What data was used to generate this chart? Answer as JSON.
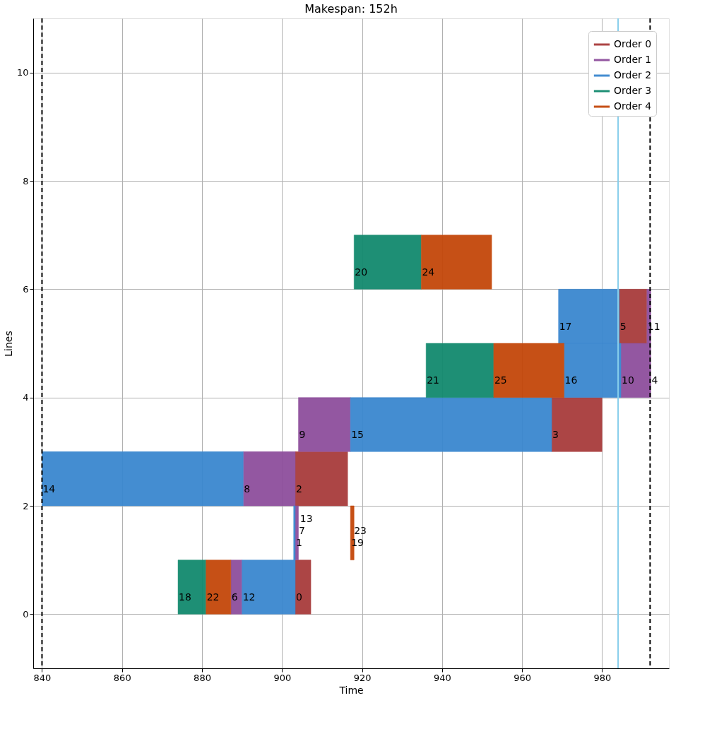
{
  "chart_data": {
    "type": "bar",
    "orientation": "horizontal",
    "title": "Makespan: 152h",
    "xlabel": "Time",
    "ylabel": "Lines",
    "series": [
      {
        "name": "Order 0",
        "color": "#a83c3c",
        "x": [
          0.5,
          2.5,
          3.5,
          5.5
        ],
        "base": [
          903.3,
          903.3,
          967.4,
          984.3
        ],
        "values": [
          3.9,
          13.1,
          12.6,
          6.9
        ]
      },
      {
        "name": "Order 1",
        "color": "#8e4f9c",
        "x": [
          0.5,
          1.5,
          2.5,
          3.5,
          4.5,
          5.5
        ],
        "base": [
          887.2,
          903.3,
          890.3,
          904.1,
          984.7,
          991.2
        ],
        "values": [
          2.8,
          0.8,
          13.0,
          13.0,
          7.5,
          1.0
        ]
      },
      {
        "name": "Order 2",
        "color": "#3a87cf",
        "x": [
          0.5,
          1.5,
          2.5,
          3.5,
          4.5,
          5.5
        ],
        "base": [
          890.0,
          902.9,
          840.0,
          917.1,
          970.5,
          969.1
        ],
        "values": [
          13.3,
          0.4,
          50.3,
          50.3,
          14.2,
          15.2
        ]
      },
      {
        "name": "Order 3",
        "color": "#138a6e",
        "x": [
          0.5,
          4.5,
          6.5
        ],
        "base": [
          874.0,
          936.0,
          918.0
        ],
        "values": [
          7.0,
          16.9,
          16.8
        ]
      },
      {
        "name": "Order 4",
        "color": "#c4470a",
        "x": [
          0.5,
          1.5,
          4.5,
          6.5
        ],
        "base": [
          881.0,
          917.1,
          952.9,
          934.8
        ],
        "values": [
          6.2,
          0.9,
          17.6,
          17.6
        ]
      }
    ],
    "annotations": [
      {
        "text": "0",
        "x": 903.3,
        "y": 0.5
      },
      {
        "text": "1",
        "x": 903.3,
        "y": 1.5
      },
      {
        "text": "2",
        "x": 903.3,
        "y": 2.5
      },
      {
        "text": "3",
        "x": 967.4,
        "y": 3.5
      },
      {
        "text": "4",
        "x": 992.2,
        "y": 4.5
      },
      {
        "text": "5",
        "x": 984.3,
        "y": 5.5
      },
      {
        "text": "6",
        "x": 887.2,
        "y": 0.5
      },
      {
        "text": "7",
        "x": 903.3,
        "y": 1.5
      },
      {
        "text": "8",
        "x": 890.3,
        "y": 2.5
      },
      {
        "text": "9",
        "x": 904.1,
        "y": 3.5
      },
      {
        "text": "10",
        "x": 984.7,
        "y": 4.5
      },
      {
        "text": "11",
        "x": 991.2,
        "y": 5.5
      },
      {
        "text": "12",
        "x": 890.0,
        "y": 0.5
      },
      {
        "text": "13",
        "x": 902.9,
        "y": 1.5
      },
      {
        "text": "14",
        "x": 840.0,
        "y": 2.5
      },
      {
        "text": "15",
        "x": 917.1,
        "y": 3.5
      },
      {
        "text": "16",
        "x": 970.5,
        "y": 4.5
      },
      {
        "text": "17",
        "x": 969.1,
        "y": 5.5
      },
      {
        "text": "18",
        "x": 874.0,
        "y": 0.5
      },
      {
        "text": "19",
        "x": 917.1,
        "y": 1.5
      },
      {
        "text": "20",
        "x": 918.0,
        "y": 6.5
      },
      {
        "text": "21",
        "x": 936.0,
        "y": 4.5
      },
      {
        "text": "22",
        "x": 881.0,
        "y": 0.5
      },
      {
        "text": "23",
        "x": 917.1,
        "y": 1.5
      },
      {
        "text": "24",
        "x": 934.8,
        "y": 6.5
      },
      {
        "text": "25",
        "x": 952.9,
        "y": 4.5
      }
    ],
    "xlim": [
      837.8,
      996.7
    ],
    "xticks": [
      840,
      860,
      880,
      900,
      920,
      940,
      960,
      980
    ],
    "ylim": [
      -1,
      11
    ],
    "yticks": [
      0,
      2,
      4,
      6,
      8,
      10
    ],
    "ref_lines": [
      {
        "axis": "x",
        "value": 840,
        "color": "#000000",
        "line_style": "dashed"
      },
      {
        "axis": "x",
        "value": 992,
        "color": "#000000",
        "line_style": "dashed"
      },
      {
        "axis": "x",
        "value": 984,
        "color": "#87ceeb",
        "line_style": "solid"
      }
    ],
    "grid": true,
    "legend": "top right"
  }
}
